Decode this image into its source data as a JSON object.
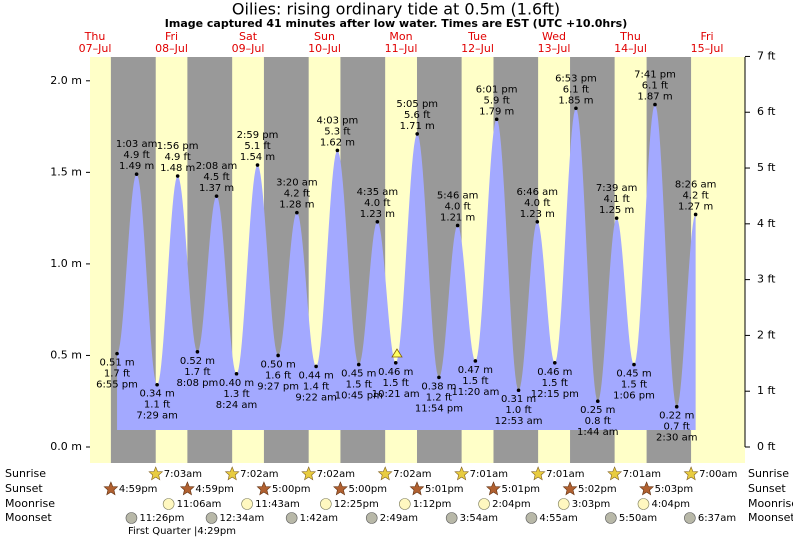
{
  "chart_data": {
    "type": "tide",
    "title": "Oilies: rising  ordinary tide at 0.5m (1.6ft)",
    "subtitle": "Image captured 41 minutes after low water. Times are EST (UTC +10.0hrs)",
    "ylim": [
      0,
      2.13
    ],
    "yticks": [
      {
        "value": 0,
        "label": "0.0 m"
      },
      {
        "value": 0.5,
        "label": "0.5 m"
      },
      {
        "value": 1,
        "label": "1.0 m"
      },
      {
        "value": 1.5,
        "label": "1.5 m"
      },
      {
        "value": 2,
        "label": "2.0 m"
      }
    ],
    "y2lim": [
      0,
      6.99
    ],
    "y2ticks": [
      {
        "value": 0,
        "label": "0 ft"
      },
      {
        "value": 1,
        "label": "1 ft"
      },
      {
        "value": 2,
        "label": "2 ft"
      },
      {
        "value": 3,
        "label": "3 ft"
      },
      {
        "value": 4,
        "label": "4 ft"
      },
      {
        "value": 5,
        "label": "5 ft"
      },
      {
        "value": 6,
        "label": "6 ft"
      },
      {
        "value": 7,
        "label": "7 ft"
      }
    ],
    "color": "#a3a9ff",
    "row_labels": {
      "sunrise": "Sunrise",
      "sunset": "Sunset",
      "moonrise": "Moonrise",
      "moonset": "Moonset"
    },
    "moon_phase": "First Quarter |4:29pm",
    "days": [
      {
        "weekday": "Thu",
        "date": "07–Jul",
        "sunrise": null,
        "sunset": "4:59pm",
        "moonrise": null,
        "moonset": "11:26pm",
        "tides": [
          {
            "time": "6:55 pm",
            "value": 0.51,
            "value_label": "0.51 m",
            "feet_label": "1.7 ft",
            "kind": "low"
          }
        ]
      },
      {
        "weekday": "Fri",
        "date": "08–Jul",
        "sunrise": "7:03am",
        "sunset": "4:59pm",
        "moonrise": "11:06am",
        "moonset": null,
        "tides": [
          {
            "time": "1:03 am",
            "value": 1.49,
            "value_label": "1.49 m",
            "feet_label": "4.9 ft",
            "kind": "high"
          },
          {
            "time": "7:29 am",
            "value": 0.34,
            "value_label": "0.34 m",
            "feet_label": "1.1 ft",
            "kind": "low"
          },
          {
            "time": "1:56 pm",
            "value": 1.48,
            "value_label": "1.48 m",
            "feet_label": "4.9 ft",
            "kind": "high"
          },
          {
            "time": "8:08 pm",
            "value": 0.52,
            "value_label": "0.52 m",
            "feet_label": "1.7 ft",
            "kind": "low"
          }
        ]
      },
      {
        "weekday": "Sat",
        "date": "09–Jul",
        "sunrise": "7:02am",
        "sunset": "5:00pm",
        "moonrise": "11:43am",
        "moonset": "12:34am",
        "tides": [
          {
            "time": "2:08 am",
            "value": 1.37,
            "value_label": "1.37 m",
            "feet_label": "4.5 ft",
            "kind": "high"
          },
          {
            "time": "8:24 am",
            "value": 0.4,
            "value_label": "0.40 m",
            "feet_label": "1.3 ft",
            "kind": "low"
          },
          {
            "time": "2:59 pm",
            "value": 1.54,
            "value_label": "1.54 m",
            "feet_label": "5.1 ft",
            "kind": "high"
          },
          {
            "time": "9:27 pm",
            "value": 0.5,
            "value_label": "0.50 m",
            "feet_label": "1.6 ft",
            "kind": "low"
          }
        ]
      },
      {
        "weekday": "Sun",
        "date": "10–Jul",
        "sunrise": "7:02am",
        "sunset": "5:00pm",
        "moonrise": "12:25pm",
        "moonset": "1:42am",
        "tides": [
          {
            "time": "3:20 am",
            "value": 1.28,
            "value_label": "1.28 m",
            "feet_label": "4.2 ft",
            "kind": "high"
          },
          {
            "time": "9:22 am",
            "value": 0.44,
            "value_label": "0.44 m",
            "feet_label": "1.4 ft",
            "kind": "low"
          },
          {
            "time": "4:03 pm",
            "value": 1.62,
            "value_label": "1.62 m",
            "feet_label": "5.3 ft",
            "kind": "high"
          },
          {
            "time": "10:45 pm",
            "value": 0.45,
            "value_label": "0.45 m",
            "feet_label": "1.5 ft",
            "kind": "low"
          }
        ]
      },
      {
        "weekday": "Mon",
        "date": "11–Jul",
        "sunrise": "7:02am",
        "sunset": "5:01pm",
        "moonrise": "1:12pm",
        "moonset": "2:49am",
        "tides": [
          {
            "time": "4:35 am",
            "value": 1.23,
            "value_label": "1.23 m",
            "feet_label": "4.0 ft",
            "kind": "high"
          },
          {
            "time": "10:21 am",
            "value": 0.46,
            "value_label": "0.46 m",
            "feet_label": "1.5 ft",
            "kind": "low"
          },
          {
            "time": "5:05 pm",
            "value": 1.71,
            "value_label": "1.71 m",
            "feet_label": "5.6 ft",
            "kind": "high"
          },
          {
            "time": "11:54 pm",
            "value": 0.38,
            "value_label": "0.38 m",
            "feet_label": "1.2 ft",
            "kind": "low"
          }
        ]
      },
      {
        "weekday": "Tue",
        "date": "12–Jul",
        "sunrise": "7:01am",
        "sunset": "5:01pm",
        "moonrise": "2:04pm",
        "moonset": "3:54am",
        "tides": [
          {
            "time": "5:46 am",
            "value": 1.21,
            "value_label": "1.21 m",
            "feet_label": "4.0 ft",
            "kind": "high"
          },
          {
            "time": "11:20 am",
            "value": 0.47,
            "value_label": "0.47 m",
            "feet_label": "1.5 ft",
            "kind": "low"
          },
          {
            "time": "6:01 pm",
            "value": 1.79,
            "value_label": "1.79 m",
            "feet_label": "5.9 ft",
            "kind": "high"
          }
        ]
      },
      {
        "weekday": "Wed",
        "date": "13–Jul",
        "sunrise": "7:01am",
        "sunset": "5:02pm",
        "moonrise": "3:03pm",
        "moonset": "4:55am",
        "tides": [
          {
            "time": "12:53 am",
            "value": 0.31,
            "value_label": "0.31 m",
            "feet_label": "1.0 ft",
            "kind": "low"
          },
          {
            "time": "6:46 am",
            "value": 1.23,
            "value_label": "1.23 m",
            "feet_label": "4.0 ft",
            "kind": "high"
          },
          {
            "time": "12:15 pm",
            "value": 0.46,
            "value_label": "0.46 m",
            "feet_label": "1.5 ft",
            "kind": "low"
          },
          {
            "time": "6:53 pm",
            "value": 1.85,
            "value_label": "1.85 m",
            "feet_label": "6.1 ft",
            "kind": "high"
          }
        ]
      },
      {
        "weekday": "Thu",
        "date": "14–Jul",
        "sunrise": "7:01am",
        "sunset": "5:03pm",
        "moonrise": "4:04pm",
        "moonset": "5:50am",
        "tides": [
          {
            "time": "1:44 am",
            "value": 0.25,
            "value_label": "0.25 m",
            "feet_label": "0.8 ft",
            "kind": "low"
          },
          {
            "time": "7:39 am",
            "value": 1.25,
            "value_label": "1.25 m",
            "feet_label": "4.1 ft",
            "kind": "high"
          },
          {
            "time": "1:06 pm",
            "value": 0.45,
            "value_label": "0.45 m",
            "feet_label": "1.5 ft",
            "kind": "low"
          },
          {
            "time": "7:41 pm",
            "value": 1.87,
            "value_label": "1.87 m",
            "feet_label": "6.1 ft",
            "kind": "high"
          }
        ]
      },
      {
        "weekday": "Fri",
        "date": "15–Jul",
        "sunrise": "7:00am",
        "sunset": null,
        "moonrise": null,
        "moonset": "6:37am",
        "tides": [
          {
            "time": "2:30 am",
            "value": 0.22,
            "value_label": "0.22 m",
            "feet_label": "0.7 ft",
            "kind": "low"
          },
          {
            "time": "8:26 am",
            "value": 1.27,
            "value_label": "1.27 m",
            "feet_label": "4.2 ft",
            "kind": "high"
          }
        ]
      }
    ]
  }
}
